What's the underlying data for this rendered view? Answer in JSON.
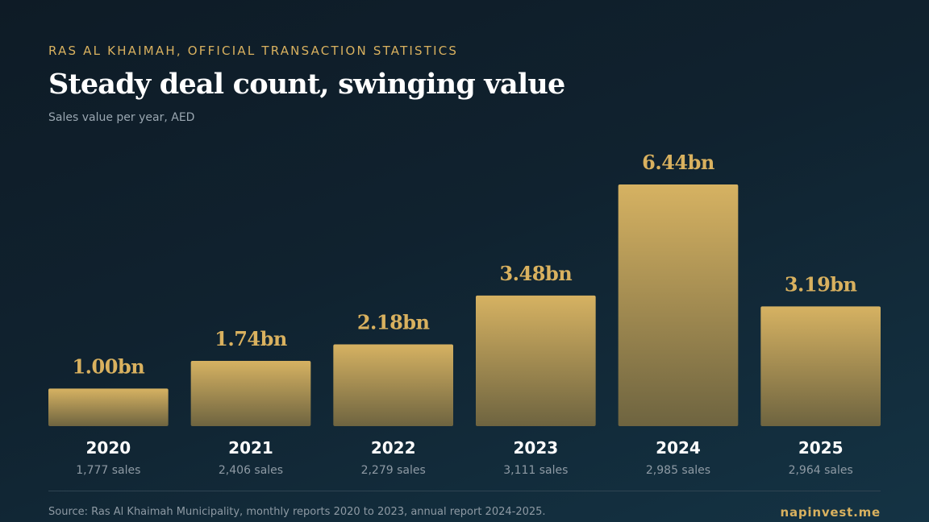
{
  "header": {
    "kicker": "RAS AL KHAIMAH, OFFICIAL TRANSACTION STATISTICS",
    "title": "Steady deal count, swinging value",
    "subtitle": "Sales value per year, AED"
  },
  "chart_data": {
    "type": "bar",
    "title": "Steady deal count, swinging value",
    "subtitle": "Sales value per year, AED",
    "categories": [
      "2020",
      "2021",
      "2022",
      "2023",
      "2024",
      "2025"
    ],
    "values": [
      1.0,
      1.74,
      2.18,
      3.48,
      6.44,
      3.19
    ],
    "value_labels": [
      "1.00bn",
      "1.74bn",
      "2.18bn",
      "3.48bn",
      "6.44bn",
      "3.19bn"
    ],
    "sales_labels": [
      "1,777 sales",
      "2,406 sales",
      "2,279 sales",
      "3,111 sales",
      "2,985 sales",
      "2,964 sales"
    ],
    "ylim": [
      0,
      6.44
    ],
    "grid": false,
    "legend": "none",
    "colors": {
      "bar_top": "#d6b262",
      "bar_bottom": "#6e6440",
      "value_label": "#d9b15f"
    }
  },
  "footer": {
    "source": "Source: Ras Al Khaimah Municipality, monthly reports 2020 to 2023, annual report 2024-2025.",
    "brand": "napinvest.me"
  }
}
